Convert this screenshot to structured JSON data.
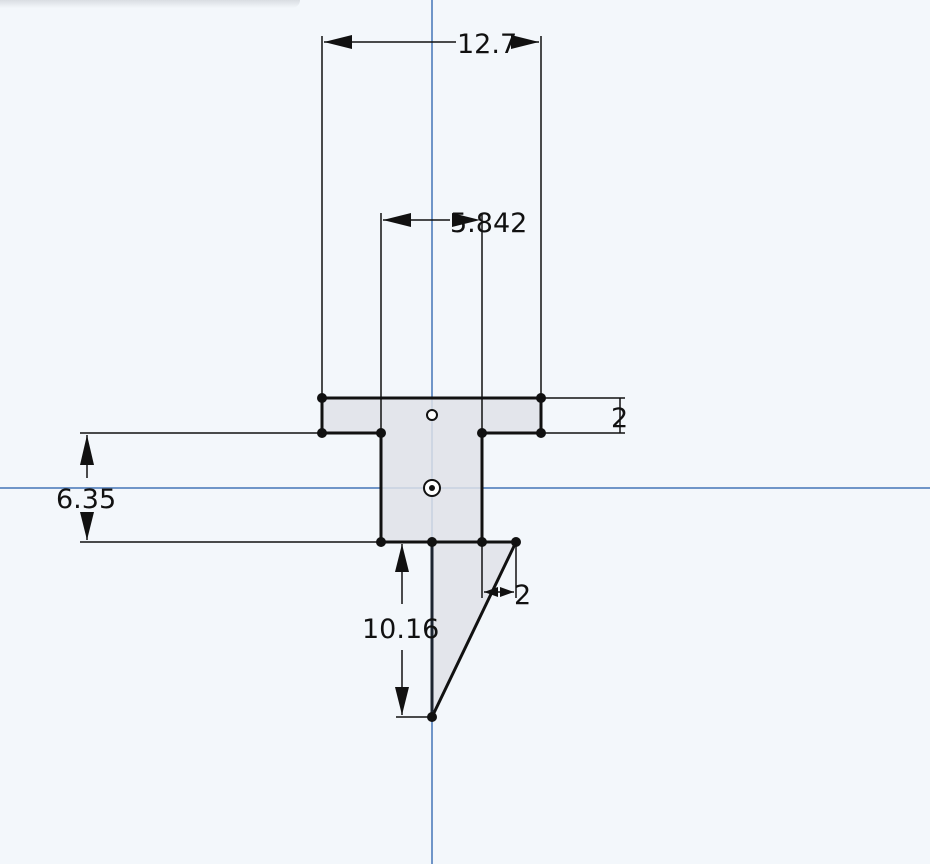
{
  "colors": {
    "background": "#f3f7fb",
    "axis": "#6f95c8",
    "region_fill": "#dfe2e8",
    "outline": "#111111",
    "dimension": "#111111"
  },
  "dimensions": {
    "top_width": "12.7",
    "stem_width": "5.842",
    "flange_thickness": "2",
    "stem_height": "6.35",
    "point_length": "10.16",
    "point_offset": "2"
  }
}
